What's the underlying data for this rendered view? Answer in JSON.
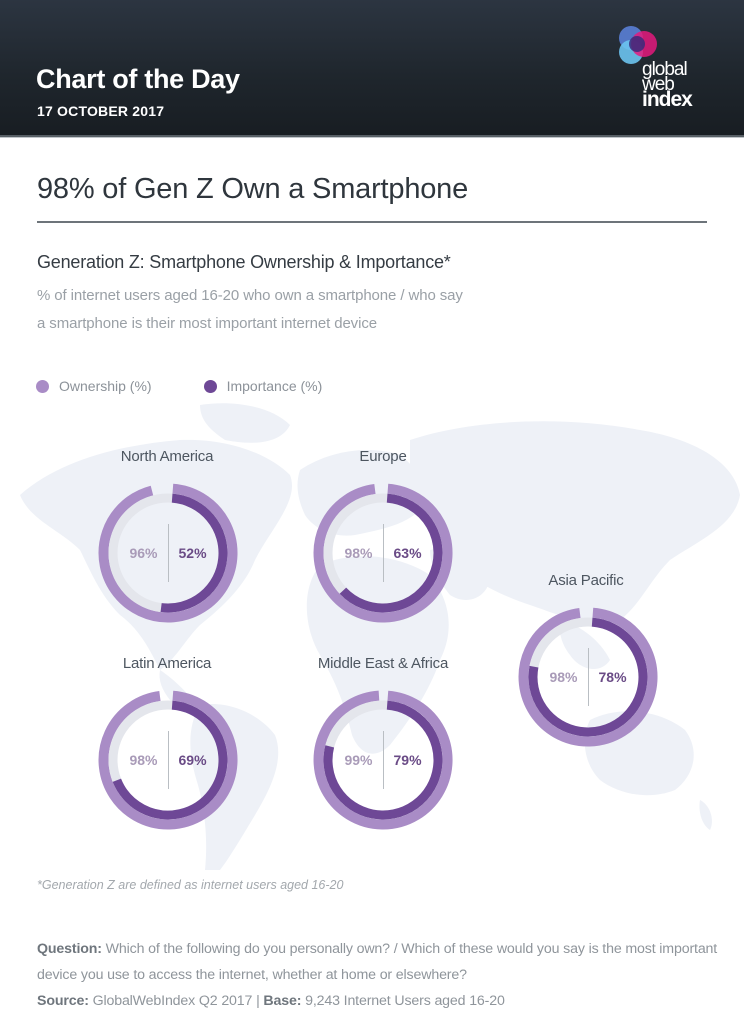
{
  "header": {
    "title": "Chart of the Day",
    "date": "17 OCTOBER 2017",
    "logo": {
      "line1": "global",
      "line2": "web",
      "line3": "index"
    }
  },
  "main_title": "98% of Gen Z Own a Smartphone",
  "chart": {
    "subtitle": "Generation Z: Smartphone Ownership & Importance*",
    "description_line1": "% of internet users aged 16-20 who own a smartphone / who say",
    "description_line2": "a smartphone is their most important internet device"
  },
  "legend": {
    "ownership": "Ownership (%)",
    "importance": "Importance (%)"
  },
  "colors": {
    "ownership": "#a98cc6",
    "importance": "#6e4896",
    "track": "#e4e6ec",
    "header_bg": "#1f262d",
    "map": "#eef1f7"
  },
  "regions": [
    {
      "name": "North America",
      "ownership": 96,
      "importance": 52,
      "ownership_label": "96%",
      "importance_label": "52%"
    },
    {
      "name": "Europe",
      "ownership": 98,
      "importance": 63,
      "ownership_label": "98%",
      "importance_label": "63%"
    },
    {
      "name": "Asia Pacific",
      "ownership": 98,
      "importance": 78,
      "ownership_label": "98%",
      "importance_label": "78%"
    },
    {
      "name": "Latin America",
      "ownership": 98,
      "importance": 69,
      "ownership_label": "98%",
      "importance_label": "69%"
    },
    {
      "name": "Middle East & Africa",
      "ownership": 99,
      "importance": 79,
      "ownership_label": "99%",
      "importance_label": "79%"
    }
  ],
  "footnote": "*Generation Z are defined as internet users aged 16-20",
  "question": {
    "question_label": "Question:",
    "question_text": " Which of the following do you personally own? / Which of these would you say is the most important device you use to access the internet, whether at home or elsewhere?",
    "source_label": "Source:",
    "source_text": " GlobalWebIndex Q2 2017 | ",
    "base_label": "Base:",
    "base_text": "  9,243 Internet Users aged 16-20"
  },
  "chart_data": {
    "type": "donut",
    "title": "Generation Z: Smartphone Ownership & Importance*",
    "subtitle": "% of internet users aged 16-20 who own a smartphone / who say a smartphone is their most important internet device",
    "categories": [
      "North America",
      "Europe",
      "Asia Pacific",
      "Latin America",
      "Middle East & Africa"
    ],
    "series": [
      {
        "name": "Ownership (%)",
        "values": [
          96,
          98,
          98,
          98,
          99
        ],
        "color": "#a98cc6"
      },
      {
        "name": "Importance (%)",
        "values": [
          52,
          63,
          78,
          69,
          79
        ],
        "color": "#6e4896"
      }
    ],
    "legend_position": "top-left",
    "annotations": [
      "*Generation Z are defined as internet users aged 16-20"
    ],
    "ylim": [
      0,
      100
    ]
  }
}
